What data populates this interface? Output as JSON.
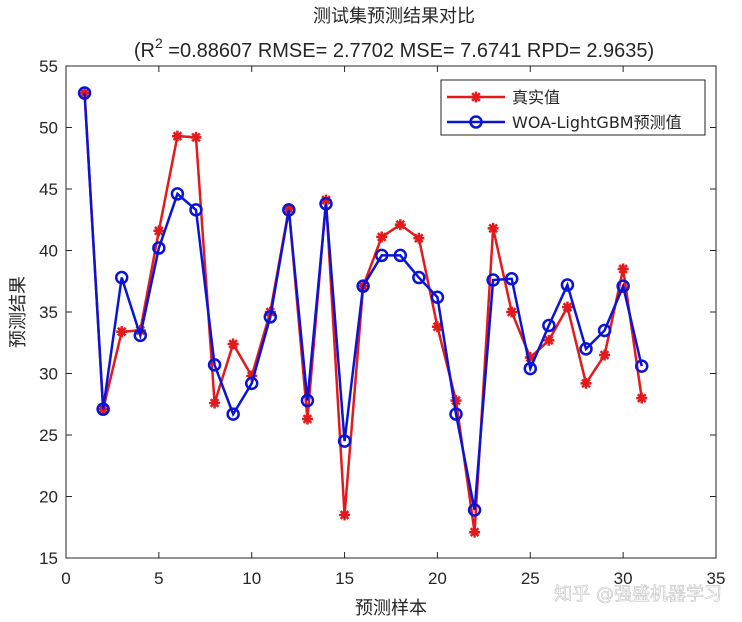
{
  "chart_data": {
    "type": "line",
    "title": "测试集预测结果对比",
    "subtitle_parts": {
      "prefix": "(R",
      "sup": "2",
      "rest": " =0.88607 RMSE= 2.7702 MSE= 7.6741 RPD= 2.9635)"
    },
    "xlabel": "预测样本",
    "ylabel": "预测结果",
    "xlim": [
      0,
      35
    ],
    "ylim": [
      15,
      55
    ],
    "xticks": [
      0,
      5,
      10,
      15,
      20,
      25,
      30,
      35
    ],
    "yticks": [
      15,
      20,
      25,
      30,
      35,
      40,
      45,
      50,
      55
    ],
    "grid": false,
    "legend_position": "top-right",
    "x": [
      1,
      2,
      3,
      4,
      5,
      6,
      7,
      8,
      9,
      10,
      11,
      12,
      13,
      14,
      15,
      16,
      17,
      18,
      19,
      20,
      21,
      22,
      23,
      24,
      25,
      26,
      27,
      28,
      29,
      30,
      31
    ],
    "series": [
      {
        "name": "真实值",
        "color": "#e31a1c",
        "marker": "asterisk",
        "values": [
          52.8,
          27.1,
          33.4,
          33.5,
          41.6,
          49.3,
          49.2,
          27.6,
          32.4,
          29.8,
          35.0,
          43.4,
          26.3,
          44.1,
          18.5,
          37.1,
          41.1,
          42.1,
          41.0,
          33.8,
          27.8,
          17.1,
          41.8,
          35.0,
          31.3,
          32.7,
          35.4,
          29.2,
          31.5,
          38.5,
          28.0
        ]
      },
      {
        "name": "WOA-LightGBM预测值",
        "color": "#0a14d6",
        "marker": "circle",
        "values": [
          52.8,
          27.1,
          37.8,
          33.1,
          40.2,
          44.6,
          43.3,
          30.7,
          26.7,
          29.2,
          34.6,
          43.3,
          27.8,
          43.8,
          24.5,
          37.1,
          39.6,
          39.6,
          37.8,
          36.2,
          26.7,
          18.9,
          37.6,
          37.7,
          30.4,
          33.9,
          37.2,
          32.0,
          33.5,
          37.1,
          30.6
        ]
      }
    ]
  },
  "watermark": "知乎 @强盛机器学习"
}
